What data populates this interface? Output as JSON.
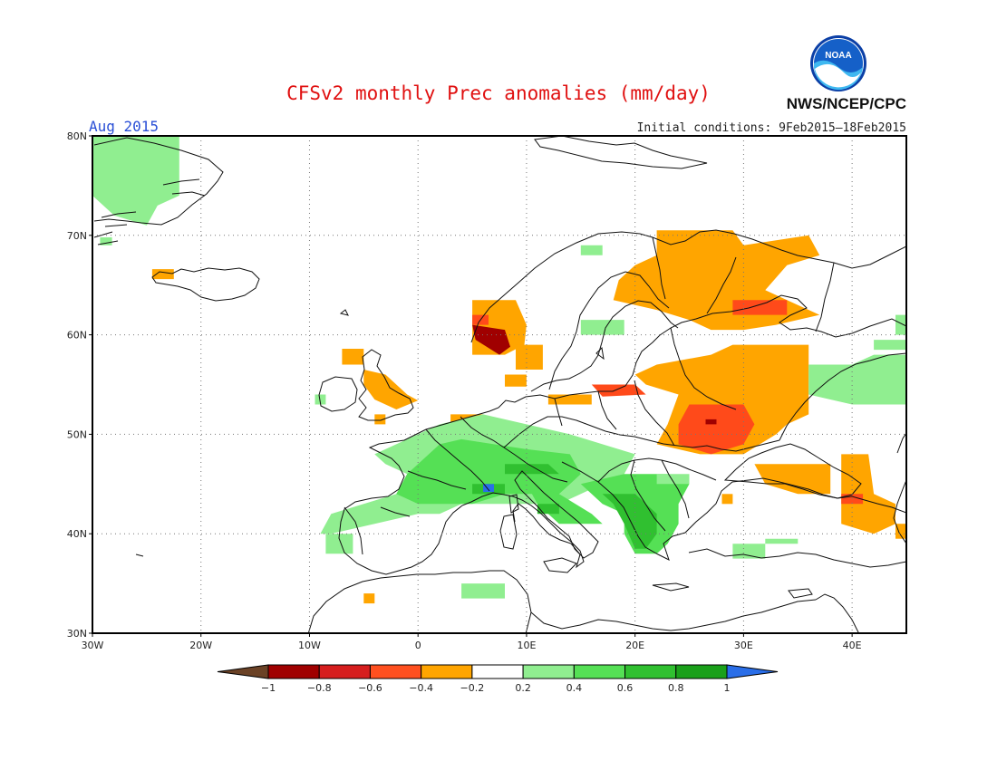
{
  "header": {
    "title": "CFSv2 monthly Prec anomalies (mm/day)",
    "month": "Aug 2015",
    "initial_conditions": "Initial conditions: 9Feb2015—18Feb2015",
    "agency": "NWS/NCEP/CPC",
    "logo_text": "NOAA"
  },
  "map": {
    "lon_range": [
      -30,
      45
    ],
    "lat_range": [
      30,
      80
    ],
    "lon_ticks": [
      {
        "value": -30,
        "label": "30W"
      },
      {
        "value": -20,
        "label": "20W"
      },
      {
        "value": -10,
        "label": "10W"
      },
      {
        "value": 0,
        "label": "0"
      },
      {
        "value": 10,
        "label": "10E"
      },
      {
        "value": 20,
        "label": "20E"
      },
      {
        "value": 30,
        "label": "30E"
      },
      {
        "value": 40,
        "label": "40E"
      }
    ],
    "lat_ticks": [
      {
        "value": 30,
        "label": "30N"
      },
      {
        "value": 40,
        "label": "40N"
      },
      {
        "value": 50,
        "label": "50N"
      },
      {
        "value": 60,
        "label": "60N"
      },
      {
        "value": 70,
        "label": "70N"
      },
      {
        "value": 80,
        "label": "80N"
      }
    ]
  },
  "anomaly_regions": [
    {
      "name": "greenland-east",
      "level": 0.3,
      "poly": [
        [
          -30,
          80
        ],
        [
          -22,
          80
        ],
        [
          -22,
          74
        ],
        [
          -24,
          73
        ],
        [
          -25,
          71
        ],
        [
          -28,
          72
        ],
        [
          -30,
          74
        ]
      ]
    },
    {
      "name": "greenland-south",
      "level": 0.3,
      "poly": [
        [
          -29.3,
          69.8
        ],
        [
          -28.2,
          69.8
        ],
        [
          -28.2,
          69
        ],
        [
          -29.3,
          69
        ]
      ]
    },
    {
      "name": "iceland-west",
      "level": -0.3,
      "poly": [
        [
          -24.5,
          66.6
        ],
        [
          -22.5,
          66.6
        ],
        [
          -22.5,
          65.6
        ],
        [
          -24.5,
          65.6
        ]
      ]
    },
    {
      "name": "ireland",
      "level": 0.3,
      "poly": [
        [
          -9.5,
          54
        ],
        [
          -8.5,
          54
        ],
        [
          -8.5,
          53
        ],
        [
          -9.5,
          53
        ]
      ]
    },
    {
      "name": "scotland-north",
      "level": -0.3,
      "poly": [
        [
          -7,
          58.6
        ],
        [
          -5,
          58.6
        ],
        [
          -5,
          57
        ],
        [
          -7,
          57
        ]
      ]
    },
    {
      "name": "scotland-uk",
      "level": -0.3,
      "poly": [
        [
          -5,
          56.5
        ],
        [
          -3,
          56
        ],
        [
          -1,
          54
        ],
        [
          0,
          53.4
        ],
        [
          -2,
          52.5
        ],
        [
          -4,
          53.5
        ],
        [
          -5,
          55
        ]
      ]
    },
    {
      "name": "wales-south",
      "level": -0.3,
      "poly": [
        [
          -4,
          52
        ],
        [
          -3,
          52
        ],
        [
          -3,
          51
        ],
        [
          -4,
          51
        ]
      ]
    },
    {
      "name": "norway-west",
      "level": -0.3,
      "poly": [
        [
          5,
          63.5
        ],
        [
          9,
          63.5
        ],
        [
          10,
          61
        ],
        [
          9.8,
          59
        ],
        [
          8,
          58
        ],
        [
          5,
          58
        ],
        [
          5,
          61
        ]
      ]
    },
    {
      "name": "norway-dry-core",
      "level": -0.7,
      "poly": [
        [
          5,
          61
        ],
        [
          8,
          60.5
        ],
        [
          8.5,
          58.8
        ],
        [
          7.5,
          58
        ],
        [
          5.3,
          59.5
        ]
      ]
    },
    {
      "name": "norway-mid",
      "level": -0.5,
      "poly": [
        [
          5,
          62
        ],
        [
          6.5,
          62
        ],
        [
          6.5,
          61
        ],
        [
          5,
          61
        ]
      ]
    },
    {
      "name": "sweden-west",
      "level": -0.3,
      "poly": [
        [
          9,
          59
        ],
        [
          11.5,
          59
        ],
        [
          11.5,
          56.5
        ],
        [
          9,
          56.5
        ]
      ]
    },
    {
      "name": "denmark",
      "level": -0.3,
      "poly": [
        [
          8,
          56
        ],
        [
          10,
          56
        ],
        [
          10,
          54.8
        ],
        [
          8,
          54.8
        ]
      ]
    },
    {
      "name": "norway-north",
      "level": 0.3,
      "poly": [
        [
          15,
          69
        ],
        [
          17,
          69
        ],
        [
          17,
          68
        ],
        [
          15,
          68
        ]
      ]
    },
    {
      "name": "sweden-central",
      "level": 0.3,
      "poly": [
        [
          15,
          61.5
        ],
        [
          19,
          61.5
        ],
        [
          19,
          60
        ],
        [
          15,
          60
        ]
      ]
    },
    {
      "name": "scandinavia-north",
      "level": -0.3,
      "poly": [
        [
          22,
          70.5
        ],
        [
          29,
          70.5
        ],
        [
          30,
          69
        ],
        [
          36,
          70
        ],
        [
          37,
          68
        ],
        [
          34,
          67
        ],
        [
          32,
          64.5
        ],
        [
          35,
          63
        ],
        [
          37,
          62
        ],
        [
          33,
          61
        ],
        [
          30,
          60.5
        ],
        [
          27,
          60.5
        ],
        [
          25,
          61.5
        ],
        [
          22,
          62.5
        ],
        [
          18,
          63.5
        ],
        [
          18.5,
          65.5
        ],
        [
          20,
          67
        ],
        [
          22,
          68
        ]
      ]
    },
    {
      "name": "finland-east",
      "level": -0.5,
      "poly": [
        [
          29,
          63.5
        ],
        [
          34,
          63.5
        ],
        [
          34,
          62
        ],
        [
          29,
          62
        ]
      ]
    },
    {
      "name": "baltic-russia",
      "level": -0.3,
      "poly": [
        [
          22,
          57
        ],
        [
          27,
          58
        ],
        [
          29,
          59
        ],
        [
          36,
          59
        ],
        [
          36,
          52
        ],
        [
          34,
          51
        ],
        [
          33,
          50
        ],
        [
          30,
          48
        ],
        [
          26,
          48
        ],
        [
          22,
          49
        ],
        [
          23,
          51
        ],
        [
          24,
          54
        ],
        [
          21,
          55
        ],
        [
          20,
          56
        ]
      ]
    },
    {
      "name": "belarus-ukraine",
      "level": -0.5,
      "poly": [
        [
          25,
          53
        ],
        [
          30,
          53
        ],
        [
          31,
          51
        ],
        [
          30,
          49
        ],
        [
          27,
          48
        ],
        [
          24,
          49
        ],
        [
          24,
          51
        ]
      ]
    },
    {
      "name": "ukraine-core",
      "level": -0.7,
      "poly": [
        [
          26.5,
          51.5
        ],
        [
          27.5,
          51.5
        ],
        [
          27.5,
          51
        ],
        [
          26.5,
          51
        ]
      ]
    },
    {
      "name": "poland-north",
      "level": -0.5,
      "poly": [
        [
          16,
          55
        ],
        [
          20,
          55
        ],
        [
          21,
          54
        ],
        [
          17,
          53.8
        ]
      ]
    },
    {
      "name": "germany-east",
      "level": -0.3,
      "poly": [
        [
          12,
          54
        ],
        [
          16,
          54
        ],
        [
          16,
          53
        ],
        [
          12,
          53
        ]
      ]
    },
    {
      "name": "benelux",
      "level": -0.3,
      "poly": [
        [
          3,
          52
        ],
        [
          6,
          52
        ],
        [
          6,
          51.2
        ],
        [
          3,
          51.2
        ]
      ]
    },
    {
      "name": "black-sea-north",
      "level": -0.3,
      "poly": [
        [
          31,
          47
        ],
        [
          38,
          47
        ],
        [
          38,
          44
        ],
        [
          35,
          44
        ],
        [
          32,
          45
        ]
      ]
    },
    {
      "name": "caucasus",
      "level": -0.3,
      "poly": [
        [
          39,
          48
        ],
        [
          41.5,
          48
        ],
        [
          42,
          44
        ],
        [
          44,
          43
        ],
        [
          44,
          41
        ],
        [
          42,
          40
        ],
        [
          39,
          41
        ],
        [
          39,
          45
        ]
      ]
    },
    {
      "name": "caucasus-red",
      "level": -0.5,
      "poly": [
        [
          39,
          44
        ],
        [
          41,
          44
        ],
        [
          41,
          43
        ],
        [
          39,
          43
        ]
      ]
    },
    {
      "name": "moldova",
      "level": -0.3,
      "poly": [
        [
          28,
          44
        ],
        [
          29,
          44
        ],
        [
          29,
          43
        ],
        [
          28,
          43
        ]
      ]
    },
    {
      "name": "morocco",
      "level": -0.3,
      "poly": [
        [
          -5,
          34
        ],
        [
          -4,
          34
        ],
        [
          -4,
          33
        ],
        [
          -5,
          33
        ]
      ]
    },
    {
      "name": "caspian-east",
      "level": -0.3,
      "poly": [
        [
          44,
          41
        ],
        [
          45,
          41
        ],
        [
          45,
          39.5
        ],
        [
          44,
          39.5
        ]
      ]
    },
    {
      "name": "western-europe-wet",
      "level": 0.3,
      "poly": [
        [
          -4,
          48
        ],
        [
          -1,
          49.5
        ],
        [
          2,
          51
        ],
        [
          6,
          52
        ],
        [
          10,
          51
        ],
        [
          14,
          50
        ],
        [
          17,
          49
        ],
        [
          20,
          48
        ],
        [
          19,
          46
        ],
        [
          15,
          44
        ],
        [
          13,
          43
        ],
        [
          10,
          43
        ],
        [
          8,
          43
        ],
        [
          4,
          43
        ],
        [
          2,
          42
        ],
        [
          0,
          42
        ],
        [
          -4,
          41
        ],
        [
          -8,
          40
        ],
        [
          -9,
          40
        ],
        [
          -8,
          42
        ],
        [
          -5,
          43
        ],
        [
          -2,
          44
        ],
        [
          -1,
          46
        ],
        [
          -3,
          47
        ]
      ]
    },
    {
      "name": "western-europe-mid",
      "level": 0.5,
      "poly": [
        [
          0,
          47
        ],
        [
          2,
          49
        ],
        [
          4,
          49.5
        ],
        [
          7,
          49
        ],
        [
          10,
          48.5
        ],
        [
          14,
          48
        ],
        [
          15,
          46
        ],
        [
          13,
          44
        ],
        [
          10,
          44
        ],
        [
          8,
          44
        ],
        [
          5,
          43
        ],
        [
          3,
          43
        ],
        [
          0,
          43
        ],
        [
          -2,
          44
        ],
        [
          -1,
          46
        ]
      ]
    },
    {
      "name": "alps-core",
      "level": 0.7,
      "poly": [
        [
          5,
          45
        ],
        [
          8,
          45
        ],
        [
          8,
          44
        ],
        [
          5,
          44
        ]
      ]
    },
    {
      "name": "alps-east",
      "level": 0.7,
      "poly": [
        [
          8,
          47
        ],
        [
          12,
          47
        ],
        [
          13,
          46
        ],
        [
          10,
          46
        ],
        [
          8,
          46
        ]
      ]
    },
    {
      "name": "alps-blue",
      "level": 1.05,
      "poly": [
        [
          6,
          45
        ],
        [
          7,
          45
        ],
        [
          7,
          44.2
        ],
        [
          6,
          44.2
        ]
      ]
    },
    {
      "name": "italy",
      "level": 0.5,
      "poly": [
        [
          10,
          45
        ],
        [
          13,
          44
        ],
        [
          16,
          42
        ],
        [
          17,
          41
        ],
        [
          13,
          41
        ],
        [
          11,
          43
        ]
      ]
    },
    {
      "name": "italy-core",
      "level": 0.7,
      "poly": [
        [
          11,
          43
        ],
        [
          13,
          43
        ],
        [
          13,
          42
        ],
        [
          11,
          42
        ]
      ]
    },
    {
      "name": "balkans",
      "level": 0.5,
      "poly": [
        [
          15,
          45
        ],
        [
          19,
          46
        ],
        [
          23,
          46
        ],
        [
          25,
          45
        ],
        [
          24,
          43
        ],
        [
          24,
          41
        ],
        [
          23,
          39
        ],
        [
          22,
          38
        ],
        [
          20,
          38
        ],
        [
          19,
          40
        ],
        [
          19,
          42
        ],
        [
          17,
          43
        ]
      ]
    },
    {
      "name": "balkans-core",
      "level": 0.7,
      "poly": [
        [
          17,
          44
        ],
        [
          20,
          44
        ],
        [
          22,
          42
        ],
        [
          22,
          40
        ],
        [
          21,
          38.5
        ],
        [
          20,
          38.5
        ],
        [
          19,
          41
        ],
        [
          18,
          43
        ]
      ]
    },
    {
      "name": "turkey-west",
      "level": 0.3,
      "poly": [
        [
          29,
          39
        ],
        [
          32,
          39
        ],
        [
          32,
          37.5
        ],
        [
          29,
          37.5
        ]
      ]
    },
    {
      "name": "turkey-mid",
      "level": 0.3,
      "poly": [
        [
          32,
          39.5
        ],
        [
          35,
          39.5
        ],
        [
          35,
          39
        ],
        [
          32,
          39
        ]
      ]
    },
    {
      "name": "north-africa",
      "level": 0.3,
      "poly": [
        [
          4,
          35
        ],
        [
          8,
          35
        ],
        [
          8,
          33.5
        ],
        [
          4,
          33.5
        ]
      ]
    },
    {
      "name": "spain-west",
      "level": 0.3,
      "poly": [
        [
          -8.5,
          40
        ],
        [
          -6,
          40
        ],
        [
          -6,
          38
        ],
        [
          -8.5,
          38
        ]
      ]
    },
    {
      "name": "russia-east",
      "level": 0.3,
      "poly": [
        [
          36,
          57
        ],
        [
          40,
          57
        ],
        [
          42,
          58
        ],
        [
          45,
          58
        ],
        [
          45,
          53
        ],
        [
          40,
          53
        ],
        [
          36,
          54
        ]
      ]
    },
    {
      "name": "russia-far",
      "level": 0.3,
      "poly": [
        [
          42,
          59.5
        ],
        [
          45,
          59.5
        ],
        [
          45,
          58.5
        ],
        [
          42,
          58.5
        ]
      ]
    },
    {
      "name": "russia-far-2",
      "level": 0.3,
      "poly": [
        [
          44,
          62
        ],
        [
          45,
          62
        ],
        [
          45,
          60
        ],
        [
          44,
          60
        ]
      ]
    },
    {
      "name": "romania-east",
      "level": 0.3,
      "poly": [
        [
          22,
          46
        ],
        [
          25,
          46
        ],
        [
          25,
          45
        ],
        [
          22,
          45
        ]
      ]
    }
  ],
  "colorbar": {
    "labels": [
      "-1",
      "-0.8",
      "-0.6",
      "-0.4",
      "-0.2",
      "0.2",
      "0.4",
      "0.6",
      "0.8",
      "1"
    ],
    "colors": [
      "#6b4226",
      "#a00000",
      "#d61e1e",
      "#ff5020",
      "#ffa500",
      "#ffffff",
      "#90ee90",
      "#55e055",
      "#30c030",
      "#1aa01a",
      "#2a6ee8"
    ]
  }
}
